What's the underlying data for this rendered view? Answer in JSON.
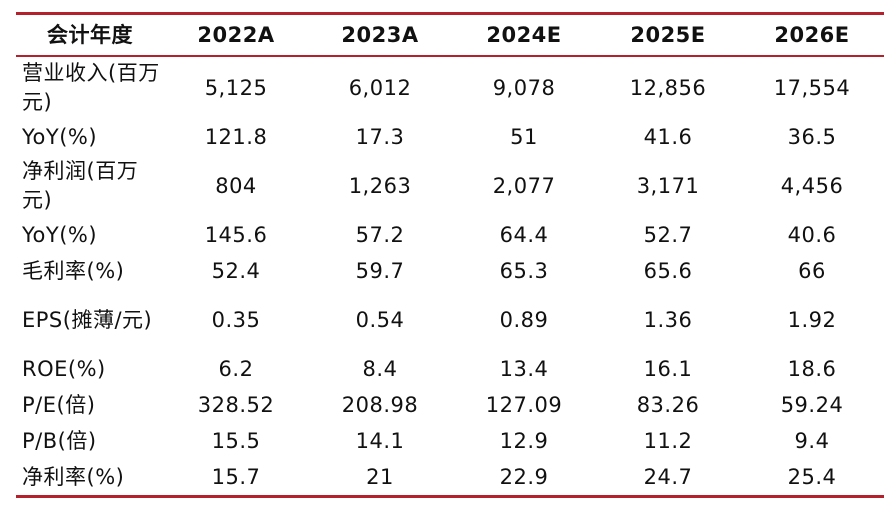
{
  "table": {
    "columns": [
      "会计年度",
      "2022A",
      "2023A",
      "2024E",
      "2025E",
      "2026E"
    ],
    "rows": [
      {
        "label": "营业收入(百万元)",
        "values": [
          "5,125",
          "6,012",
          "9,078",
          "12,856",
          "17,554"
        ]
      },
      {
        "label": "YoY(%)",
        "values": [
          "121.8",
          "17.3",
          "51",
          "41.6",
          "36.5"
        ]
      },
      {
        "label": "净利润(百万元)",
        "values": [
          "804",
          "1,263",
          "2,077",
          "3,171",
          "4,456"
        ]
      },
      {
        "label": "YoY(%)",
        "values": [
          "145.6",
          "57.2",
          "64.4",
          "52.7",
          "40.6"
        ]
      },
      {
        "label": "毛利率(%)",
        "values": [
          "52.4",
          "59.7",
          "65.3",
          "65.6",
          "66"
        ]
      },
      {
        "label": "EPS(摊薄/元)",
        "values": [
          "0.35",
          "0.54",
          "0.89",
          "1.36",
          "1.92"
        ]
      },
      {
        "label": "ROE(%)",
        "values": [
          "6.2",
          "8.4",
          "13.4",
          "16.1",
          "18.6"
        ]
      },
      {
        "label": "P/E(倍)",
        "values": [
          "328.52",
          "208.98",
          "127.09",
          "83.26",
          "59.24"
        ]
      },
      {
        "label": "P/B(倍)",
        "values": [
          "15.5",
          "14.1",
          "12.9",
          "11.2",
          "9.4"
        ]
      },
      {
        "label": "净利率(%)",
        "values": [
          "15.7",
          "21",
          "22.9",
          "24.7",
          "25.4"
        ]
      }
    ]
  },
  "colors": {
    "rule": "#b5202d",
    "text": "#111111"
  }
}
